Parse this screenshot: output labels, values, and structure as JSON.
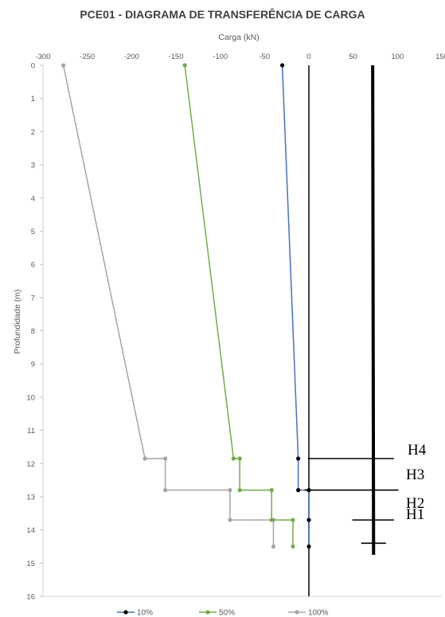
{
  "chart_data": {
    "type": "line",
    "title": "PCE01 - DIAGRAMA DE TRANSFERÊNCIA DE CARGA",
    "xlabel": "Carga (kN)",
    "ylabel": "Profundidade (m)",
    "xlim": [
      -300,
      150
    ],
    "ylim": [
      0,
      16
    ],
    "y_inverted": true,
    "x_axis_position": "top",
    "x_ticks": [
      -300,
      -250,
      -200,
      -150,
      -100,
      -50,
      0,
      50,
      100,
      150
    ],
    "y_ticks": [
      0,
      1,
      2,
      3,
      4,
      5,
      6,
      7,
      8,
      9,
      10,
      11,
      12,
      13,
      14,
      15,
      16
    ],
    "legend_position": "bottom",
    "series": [
      {
        "name": "10%",
        "color": "#4472c4",
        "marker_color": "#000000",
        "points": [
          [
            -30,
            0
          ],
          [
            -12,
            11.85
          ],
          [
            -12,
            12.8
          ],
          [
            0,
            12.8
          ],
          [
            0,
            13.7
          ],
          [
            0,
            14.5
          ]
        ]
      },
      {
        "name": "50%",
        "color": "#70ad47",
        "marker_color": "#70ad47",
        "points": [
          [
            -140,
            0
          ],
          [
            -85,
            11.85
          ],
          [
            -78,
            11.85
          ],
          [
            -78,
            12.8
          ],
          [
            -42,
            12.8
          ],
          [
            -42,
            13.7
          ],
          [
            -18,
            13.7
          ],
          [
            -18,
            14.5
          ]
        ]
      },
      {
        "name": "100%",
        "color": "#a5a5a5",
        "marker_color": "#a5a5a5",
        "points": [
          [
            -277,
            0
          ],
          [
            -185,
            11.85
          ],
          [
            -162,
            11.85
          ],
          [
            -162,
            12.8
          ],
          [
            -89,
            12.8
          ],
          [
            -89,
            13.7
          ],
          [
            -40,
            13.7
          ],
          [
            -40,
            14.5
          ]
        ]
      }
    ],
    "pile_line": {
      "color": "#000000",
      "x": [
        72,
        73
      ],
      "depth_range": [
        0,
        14.75
      ]
    },
    "layer_markers": [
      {
        "label": "H4",
        "depth": 11.85,
        "x_range": [
          -1,
          96
        ]
      },
      {
        "label": "H3",
        "depth": 12.8,
        "x_range": [
          -5,
          101
        ]
      },
      {
        "label": "H2",
        "depth": 13.7,
        "x_range": [
          49,
          96
        ]
      },
      {
        "label": "H1",
        "depth": 14.4,
        "x_range": [
          59,
          87
        ]
      }
    ]
  }
}
